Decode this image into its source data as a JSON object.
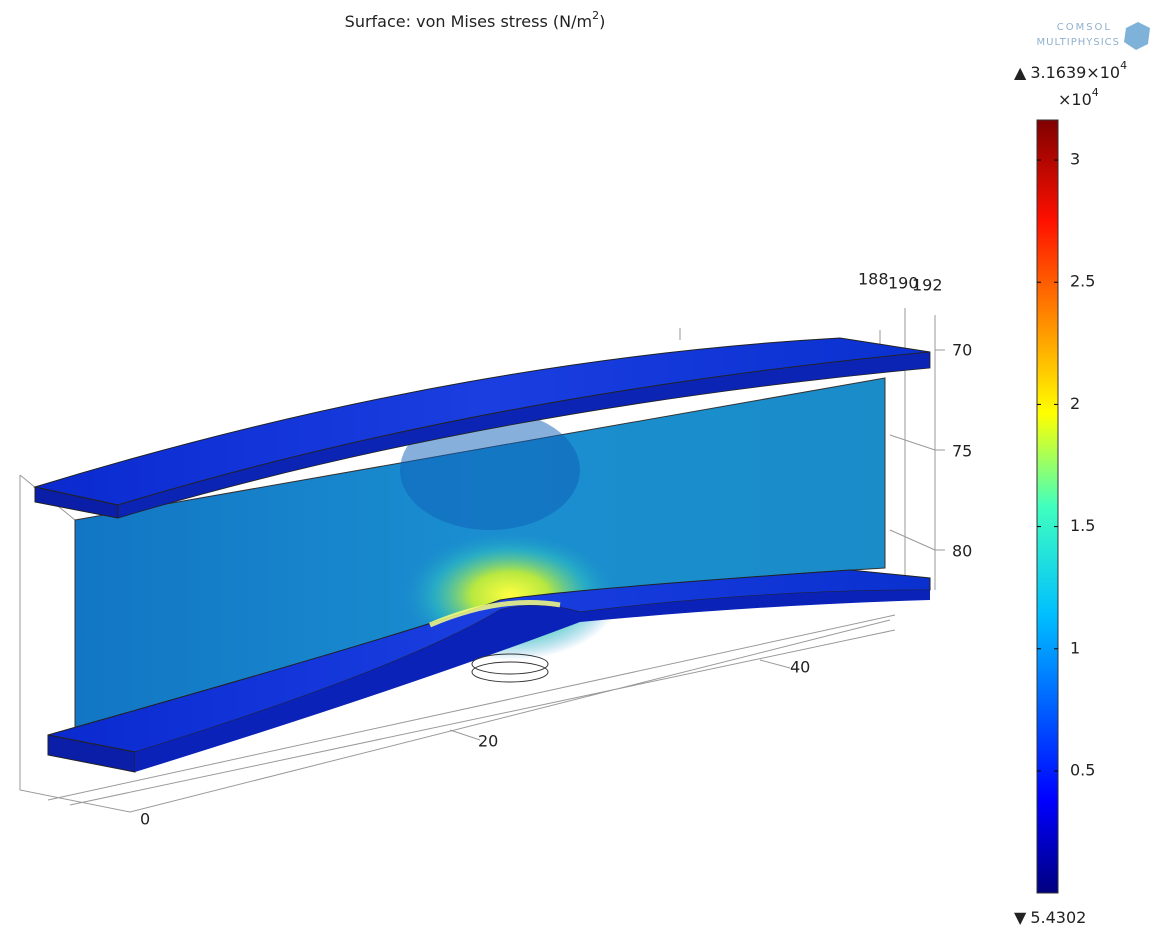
{
  "title": {
    "text": "Surface: von Mises stress (N/m",
    "sup": "2",
    "tail": ")"
  },
  "logo": {
    "line1": "COMSOL",
    "line2": "MULTIPHYSICS"
  },
  "colorbar": {
    "max_label": {
      "marker": "▲",
      "mantissa": "3.1639×10",
      "exponent": "4"
    },
    "multiplier": {
      "base": "×10",
      "exponent": "4"
    },
    "min_label": {
      "marker": "▼",
      "value": "5.4302"
    },
    "lim": [
      0.00054302,
      3.1639
    ],
    "ticks": [
      0.5,
      1,
      1.5,
      2,
      2.5,
      3
    ]
  },
  "axes": {
    "x_labels": [
      "0",
      "20",
      "40"
    ],
    "y_labels": [
      "188",
      "190",
      "192"
    ],
    "z_labels": [
      "70",
      "75",
      "80"
    ]
  }
}
